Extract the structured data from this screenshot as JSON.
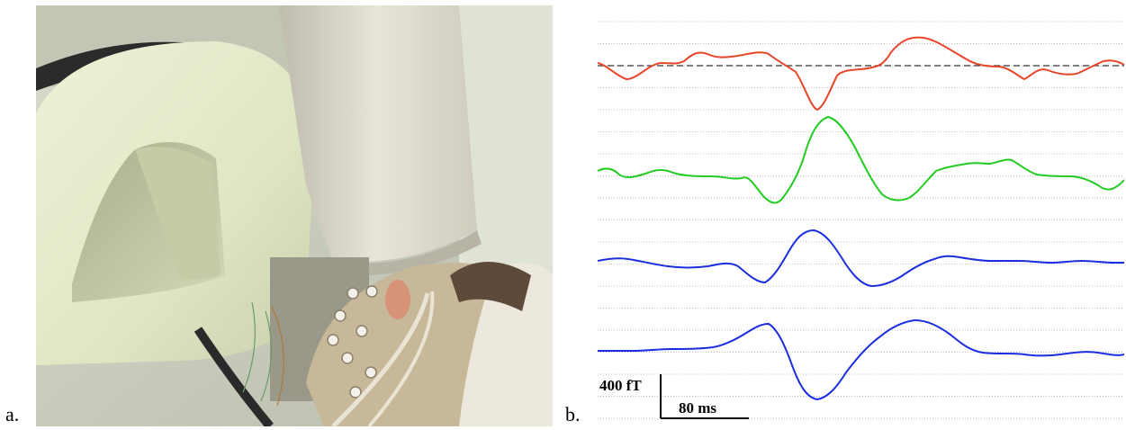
{
  "figure": {
    "panel_a_label": "a.",
    "panel_b_label": "b.",
    "photo_description_icon": "meg-dewar-head-photo"
  },
  "scale_bar": {
    "amplitude_label": "400 fT",
    "time_label": "80 ms"
  },
  "traces": {
    "colors": [
      "#e8452a",
      "#22cc22",
      "#1a2ee0",
      "#1a2ee0"
    ],
    "baseline_style": "dashed on first trace"
  }
}
